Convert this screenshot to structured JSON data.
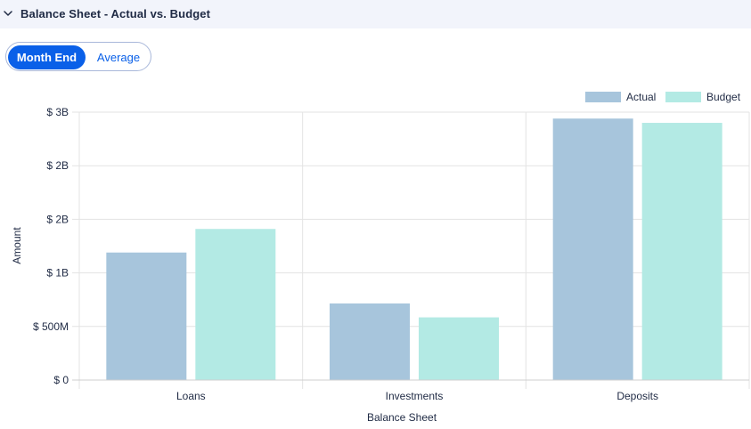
{
  "header": {
    "title": "Balance Sheet - Actual vs. Budget",
    "collapse_icon": "chevron-down-icon"
  },
  "toggle": {
    "options": [
      "Month End",
      "Average"
    ],
    "selected": "Month End"
  },
  "colors": {
    "actual": "#a7c5dc",
    "budget": "#b3eae4",
    "accent": "#0a60e8"
  },
  "chart_data": {
    "type": "bar",
    "categories": [
      "Loans",
      "Investments",
      "Deposits"
    ],
    "series": [
      {
        "name": "Actual",
        "values": [
          1190000000,
          715000000,
          2440000000
        ]
      },
      {
        "name": "Budget",
        "values": [
          1410000000,
          585000000,
          2400000000
        ]
      }
    ],
    "xlabel": "Balance Sheet",
    "ylabel": "Amount",
    "ylim": [
      0,
      2500000000
    ],
    "yticks": [
      0,
      500000000,
      1000000000,
      1500000000,
      2000000000,
      2500000000
    ],
    "ytick_labels": [
      "$ 0",
      "$ 500M",
      "$ 1B",
      "$ 2B",
      "$ 2B",
      "$ 3B"
    ],
    "legend": "top-right",
    "grid": true
  }
}
